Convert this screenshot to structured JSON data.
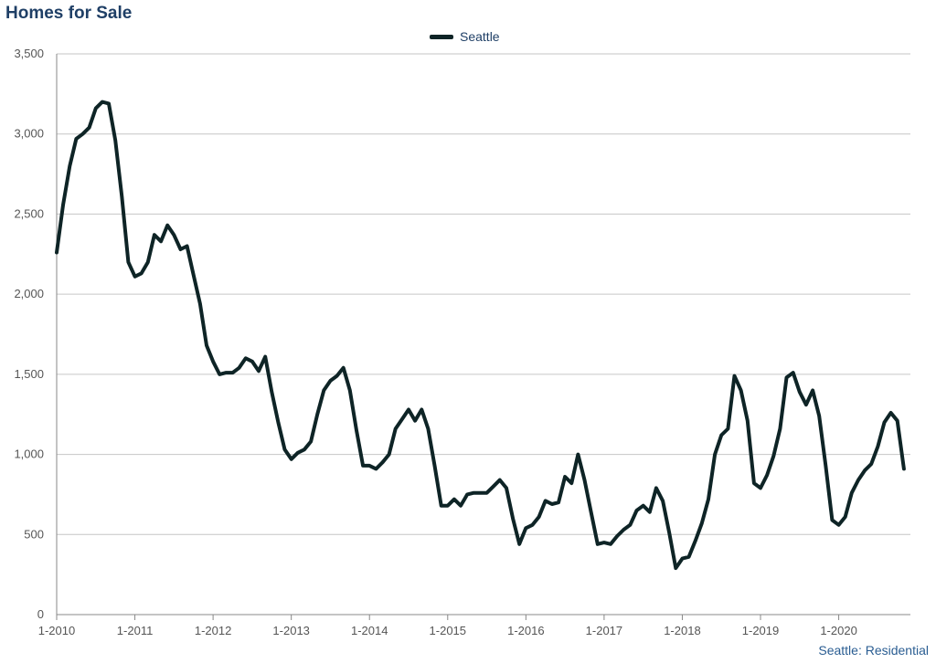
{
  "header": {
    "title": "Homes for Sale"
  },
  "footer": {
    "note": "Seattle: Residential"
  },
  "chart_data": {
    "type": "line",
    "title": "Homes for Sale",
    "xlabel": "",
    "ylabel": "",
    "ylim": [
      0,
      3500
    ],
    "yticks": [
      {
        "value": 0,
        "label": "0"
      },
      {
        "value": 500,
        "label": "500"
      },
      {
        "value": 1000,
        "label": "1,000"
      },
      {
        "value": 1500,
        "label": "1,500"
      },
      {
        "value": 2000,
        "label": "2,000"
      },
      {
        "value": 2500,
        "label": "2,500"
      },
      {
        "value": 3000,
        "label": "3,000"
      },
      {
        "value": 3500,
        "label": "3,500"
      }
    ],
    "xticks": [
      "1-2010",
      "1-2011",
      "1-2012",
      "1-2013",
      "1-2014",
      "1-2015",
      "1-2016",
      "1-2017",
      "1-2018",
      "1-2019",
      "1-2020"
    ],
    "grid": true,
    "legend_position": "top-center",
    "series": [
      {
        "name": "Seattle",
        "color": "#0e2426",
        "start": "1-2010",
        "values": [
          2260,
          2560,
          2800,
          2970,
          3000,
          3040,
          3160,
          3200,
          3190,
          2960,
          2610,
          2200,
          2110,
          2130,
          2200,
          2370,
          2330,
          2430,
          2370,
          2280,
          2300,
          2120,
          1940,
          1680,
          1580,
          1500,
          1510,
          1510,
          1540,
          1600,
          1580,
          1520,
          1610,
          1390,
          1200,
          1030,
          970,
          1010,
          1030,
          1080,
          1250,
          1400,
          1460,
          1490,
          1540,
          1400,
          1150,
          930,
          930,
          910,
          950,
          1000,
          1160,
          1220,
          1280,
          1210,
          1280,
          1160,
          930,
          680,
          680,
          720,
          680,
          750,
          760,
          760,
          760,
          800,
          840,
          790,
          600,
          440,
          540,
          560,
          610,
          710,
          690,
          700,
          860,
          820,
          1000,
          840,
          640,
          440,
          450,
          440,
          490,
          530,
          560,
          650,
          680,
          640,
          790,
          710,
          510,
          290,
          350,
          360,
          460,
          570,
          720,
          1000,
          1120,
          1160,
          1490,
          1400,
          1210,
          820,
          790,
          870,
          990,
          1160,
          1480,
          1510,
          1390,
          1310,
          1400,
          1240,
          930,
          590,
          560,
          610,
          760,
          840,
          900,
          940,
          1050,
          1200,
          1260,
          1210,
          910
        ]
      }
    ]
  }
}
